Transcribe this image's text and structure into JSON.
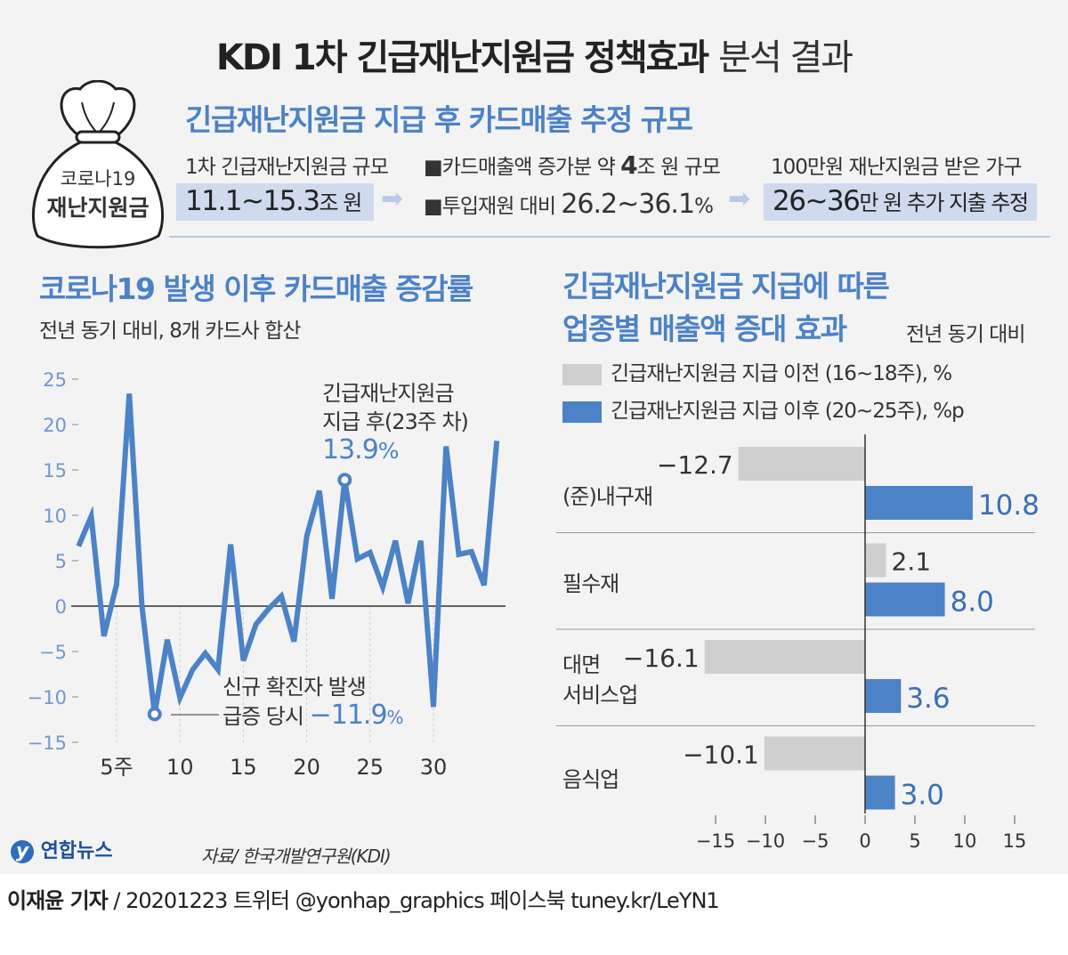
{
  "title": {
    "bold": "KDI 1차 긴급재난지원금 정책효과",
    "light": "분석 결과"
  },
  "badge": {
    "line1": "코로나19",
    "line2": "재난지원금"
  },
  "summary": {
    "heading": "긴급재난지원금 지급 후 카드매출 추정 규모",
    "scale_label": "1차 긴급재난지원금 규모",
    "scale_value": "11.1~15.3",
    "scale_unit": "조 원",
    "bullet1_pre": "■카드매출액 증가분 약 ",
    "bullet1_num": "4",
    "bullet1_post": "조 원 규모",
    "bullet2_pre": "■투입재원 대비 ",
    "bullet2_num": "26.2~36.1",
    "bullet2_post": "%",
    "household_label": "100만원 재난지원금 받은 가구",
    "household_value": "26~36",
    "household_post": "만 원 추가 지출 추정"
  },
  "chart_data": [
    {
      "type": "line",
      "title": "코로나19 발생 이후 카드매출 증감률",
      "subtitle": "전년 동기 대비, 8개 카드사 합산",
      "x": [
        2,
        3,
        4,
        5,
        6,
        7,
        8,
        9,
        10,
        11,
        12,
        13,
        14,
        15,
        16,
        17,
        18,
        19,
        20,
        21,
        22,
        23,
        24,
        25,
        26,
        27,
        28,
        29,
        30,
        31,
        32,
        33,
        34,
        35
      ],
      "values": [
        6.6,
        9.9,
        -3.3,
        2.4,
        23.4,
        0,
        -11.9,
        -3.7,
        -10.1,
        -7.0,
        -5.2,
        -7.0,
        6.8,
        -6.0,
        -2.0,
        -0.3,
        1.1,
        -3.9,
        7.7,
        12.7,
        0.8,
        13.9,
        5.2,
        5.9,
        2.1,
        7.2,
        0.3,
        7.2,
        -11.1,
        17.6,
        5.7,
        6.0,
        2.3,
        18.2
      ],
      "ylim": [
        -15,
        25
      ],
      "yticks": [
        "25",
        "20",
        "15",
        "10",
        "5",
        "0",
        "−5",
        "−10",
        "−15"
      ],
      "xticks": [
        "5주",
        "10",
        "15",
        "20",
        "25",
        "30"
      ],
      "color": "#4c82c6",
      "annotations": [
        {
          "text1": "긴급재난지원금",
          "text2": "지급 후(23주 차)",
          "value": "13.9",
          "unit": "%"
        },
        {
          "text1": "신규 확진자 발생",
          "text2": "급증 당시",
          "value": "−11.9",
          "unit": "%"
        }
      ]
    },
    {
      "type": "bar",
      "title_line1": "긴급재난지원금 지급에 따른",
      "title_line2": "업종별 매출액 증대 효과",
      "note": "전년 동기 대비",
      "categories": [
        "(준)내구재",
        "필수재",
        "대면\n서비스업",
        "음식업"
      ],
      "series": [
        {
          "name": "긴급재난지원금 지급 이전 (16~18주), %",
          "values": [
            -12.7,
            2.1,
            -16.1,
            -10.1
          ],
          "labels": [
            "−12.7",
            "2.1",
            "−16.1",
            "−10.1"
          ],
          "color": "#cfcfcf"
        },
        {
          "name": "긴급재난지원금 지급 이후 (20~25주), %p",
          "values": [
            10.8,
            8.0,
            3.6,
            3.0
          ],
          "labels": [
            "10.8",
            "8.0",
            "3.6",
            "3.0"
          ],
          "color": "#4c82c6"
        }
      ],
      "xlim": [
        -15,
        15
      ],
      "xticks": [
        "−15",
        "−10",
        "−5",
        "0",
        "5",
        "10",
        "15"
      ]
    }
  ],
  "source": "자료/ 한국개발연구원(KDI)",
  "logo": "연합뉴스",
  "footer": {
    "author": "이재윤 기자",
    "rest": " / 20201223   트위터 @yonhap_graphics  페이스북 tuney.kr/LeYN1"
  }
}
